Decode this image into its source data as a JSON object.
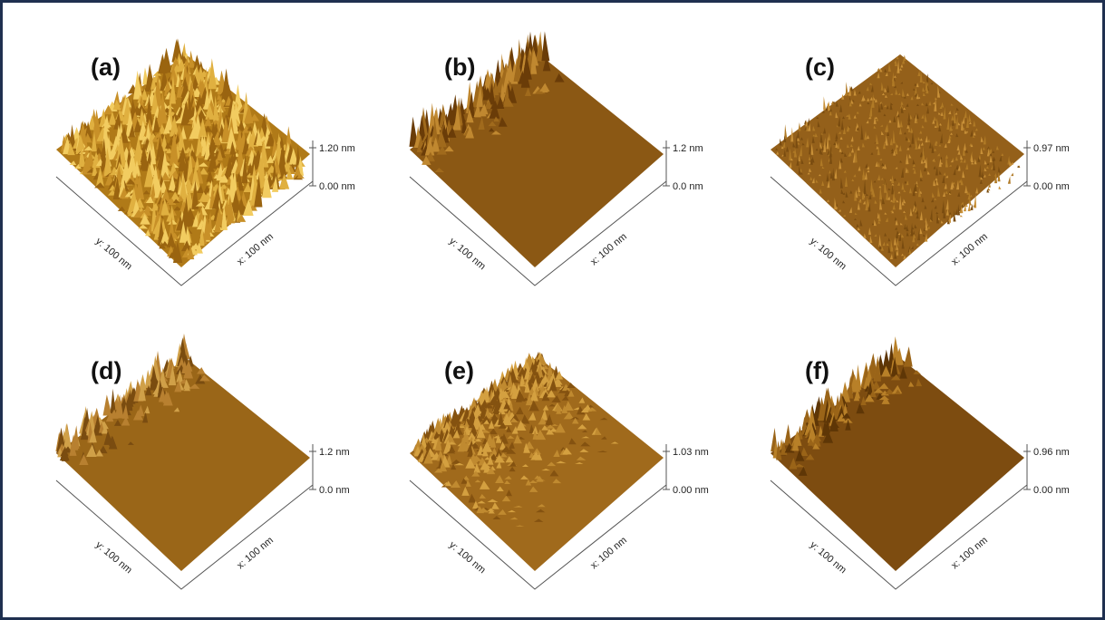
{
  "panels": [
    {
      "label": "(a)",
      "z_max": "1.20 nm",
      "z_min": "0.00 nm",
      "y_axis": "y: 100 nm",
      "x_axis": "x: 100 nm"
    },
    {
      "label": "(b)",
      "z_max": "1.2 nm",
      "z_min": "0.0 nm",
      "y_axis": "y: 100 nm",
      "x_axis": "x: 100 nm"
    },
    {
      "label": "(c)",
      "z_max": "0.97 nm",
      "z_min": "0.00 nm",
      "y_axis": "y: 100 nm",
      "x_axis": "x: 100 nm"
    },
    {
      "label": "(d)",
      "z_max": "1.2 nm",
      "z_min": "0.0 nm",
      "y_axis": "y: 100 nm",
      "x_axis": "x: 100 nm"
    },
    {
      "label": "(e)",
      "z_max": "1.03 nm",
      "z_min": "0.00 nm",
      "y_axis": "y: 100 nm",
      "x_axis": "x: 100 nm"
    },
    {
      "label": "(f)",
      "z_max": "0.96 nm",
      "z_min": "0.00 nm",
      "y_axis": "y: 100 nm",
      "x_axis": "x: 100 nm"
    }
  ]
}
